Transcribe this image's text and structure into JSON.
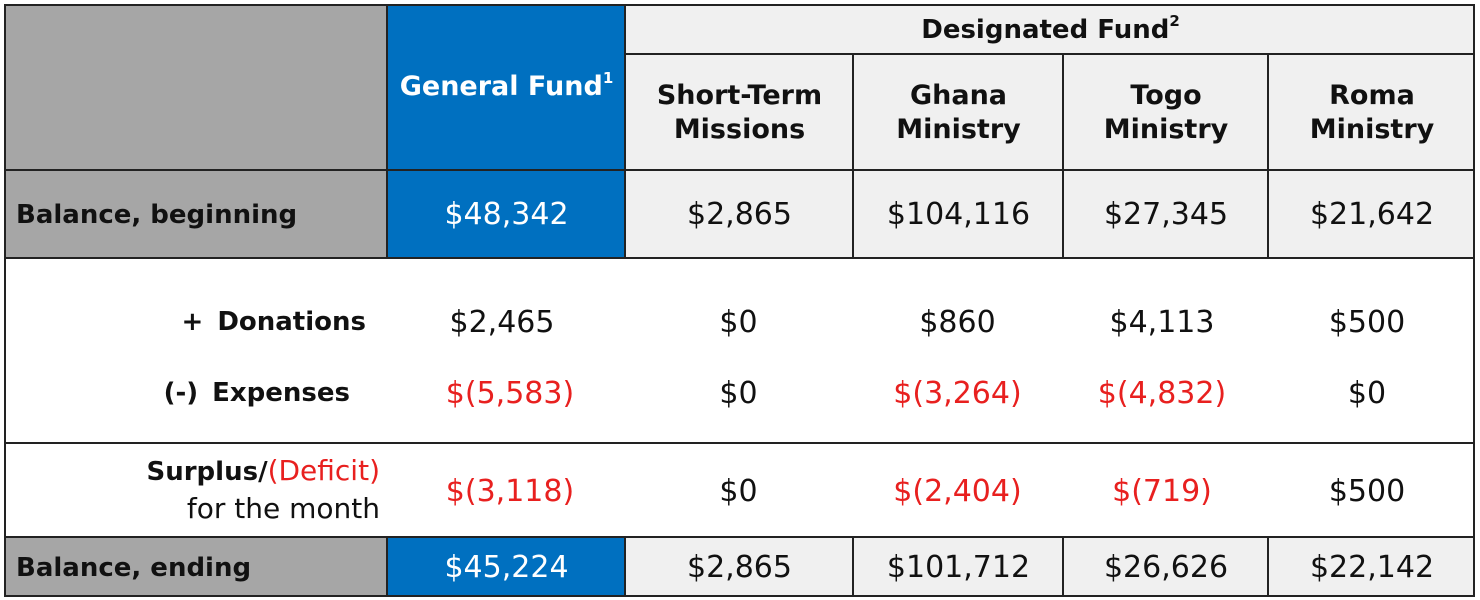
{
  "header": {
    "group_label": "Designated Fund",
    "group_sup": "2",
    "general": "General Fund",
    "general_sup": "1",
    "columns": [
      "Short-Term Missions",
      "Ghana Ministry",
      "Togo Ministry",
      "Roma Ministry"
    ]
  },
  "rows": {
    "beginning": {
      "label": "Balance, beginning",
      "values": [
        "$48,342",
        "$2,865",
        "$104,116",
        "$27,345",
        "$21,642"
      ]
    },
    "donations": {
      "sign": "+",
      "label": "Donations",
      "values": [
        "$2,465",
        "$0",
        "$860",
        "$4,113",
        "$500"
      ]
    },
    "expenses": {
      "sign": "(-)",
      "label": "Expenses",
      "values": [
        "$(5,583)",
        "$0",
        "$(3,264)",
        "$(4,832)",
        "$0"
      ]
    },
    "surplus": {
      "label_a": "Surplus/",
      "label_b": "(Deficit)",
      "label_c": "for the month",
      "values": [
        "$(3,118)",
        "$0",
        "$(2,404)",
        "$(719)",
        "$500"
      ]
    },
    "ending": {
      "label": "Balance, ending",
      "values": [
        "$45,224",
        "$2,865",
        "$101,712",
        "$26,626",
        "$22,142"
      ]
    }
  },
  "colors": {
    "general_fund": "#0070c0",
    "label_gray": "#a6a6a6",
    "header_light": "#f0f0f0",
    "negative": "#e8201f"
  }
}
